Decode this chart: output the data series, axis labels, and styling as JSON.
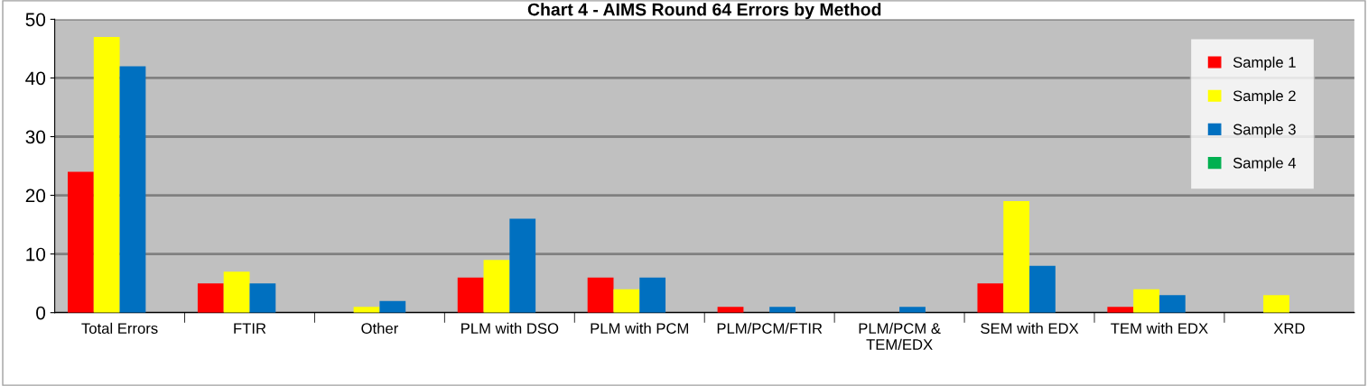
{
  "chart_data": {
    "type": "bar",
    "title": "Chart 4 - AIMS Round 64 Errors by Method",
    "categories": [
      "Total Errors",
      "FTIR",
      "Other",
      "PLM with DSO",
      "PLM with PCM",
      "PLM/PCM/FTIR",
      "PLM/PCM &\nTEM/EDX",
      "SEM with EDX",
      "TEM with EDX",
      "XRD"
    ],
    "series": [
      {
        "name": "Sample 1",
        "color": "#ff0000",
        "values": [
          24,
          5,
          0,
          6,
          6,
          1,
          0,
          5,
          1,
          0
        ]
      },
      {
        "name": "Sample 2",
        "color": "#ffff00",
        "values": [
          47,
          7,
          1,
          9,
          4,
          0,
          0,
          19,
          4,
          3
        ]
      },
      {
        "name": "Sample 3",
        "color": "#0070c0",
        "values": [
          42,
          5,
          2,
          16,
          6,
          1,
          1,
          8,
          3,
          0
        ]
      },
      {
        "name": "Sample 4",
        "color": "#00b050",
        "values": [
          0,
          0,
          0,
          0,
          0,
          0,
          0,
          0,
          0,
          0
        ]
      }
    ],
    "ylim": [
      0,
      50
    ],
    "yticks": [
      0,
      10,
      20,
      30,
      40,
      50
    ],
    "grid": "y",
    "legend": "top right"
  }
}
